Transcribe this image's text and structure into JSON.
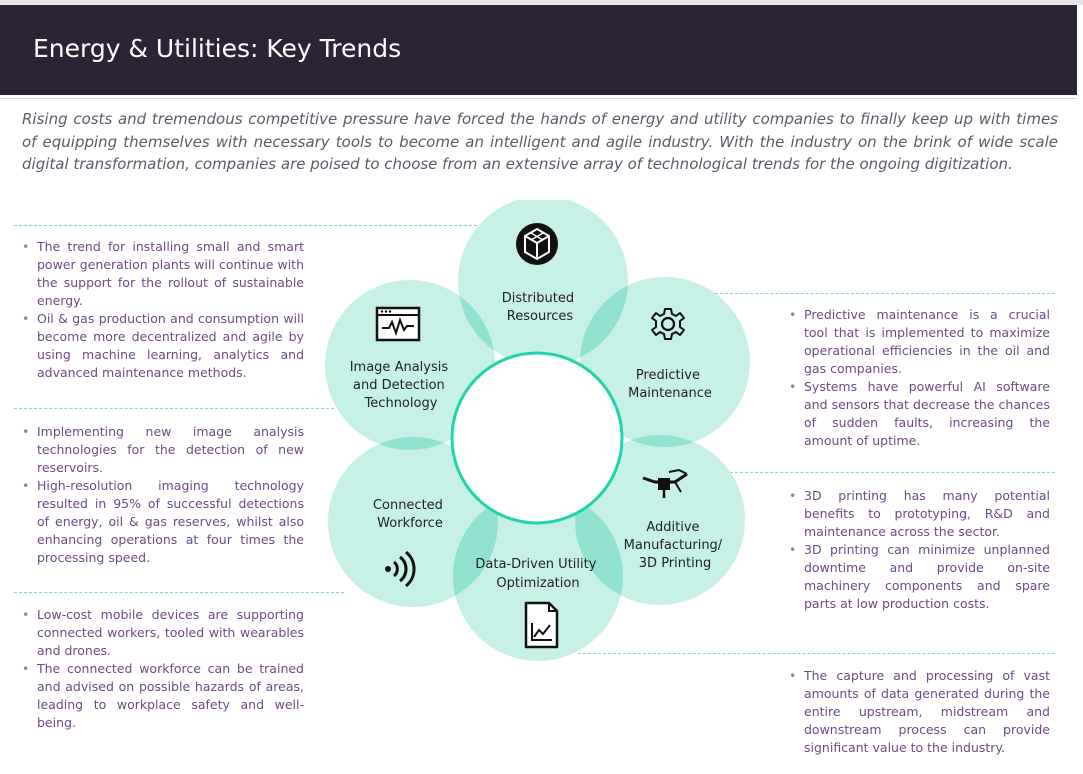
{
  "title": "Energy & Utilities: Key Trends",
  "intro": "Rising costs and tremendous competitive pressure have forced the hands of energy and utility companies to finally keep up with times of equipping themselves with necessary tools to become an intelligent and agile industry. With the industry on the brink of wide scale digital transformation, companies are poised to choose from an extensive array of technological trends for the ongoing digitization.",
  "colors": {
    "header_bg": "#2b2437",
    "petal_fill": "#c7f0e6",
    "petal_overlap": "#8fe2cf",
    "center_ring": "#1fd3ad",
    "bullet_text": "#6f4a86",
    "dashed_rule": "#7fd9c5"
  },
  "petals": [
    {
      "label_lines": [
        "Distributed",
        "Resources"
      ],
      "icon": "distributed-resources-icon"
    },
    {
      "label_lines": [
        "Predictive",
        "Maintenance"
      ],
      "icon": "gear-icon"
    },
    {
      "label_lines": [
        "Additive",
        "Manufacturing/",
        "3D Printing"
      ],
      "icon": "3d-printer-icon"
    },
    {
      "label_lines": [
        "Data-Driven Utility",
        "Optimization"
      ],
      "icon": "chart-document-icon"
    },
    {
      "label_lines": [
        "Connected",
        "Workforce"
      ],
      "icon": "wireless-signal-icon"
    },
    {
      "label_lines": [
        "Image Analysis",
        "and Detection",
        "Technology"
      ],
      "icon": "monitor-waveform-icon"
    }
  ],
  "left_sections": [
    {
      "bullets": [
        "The trend for installing small and smart power generation plants will continue with the support for the rollout of sustainable energy.",
        "Oil & gas production and consumption will become more decentralized and agile by using machine learning, analytics and advanced maintenance methods."
      ]
    },
    {
      "bullets": [
        "Implementing new image analysis technologies for the detection of new reservoirs.",
        "High-resolution imaging technology resulted in 95% of successful detections of energy, oil & gas reserves, whilst also enhancing operations at four times the processing speed."
      ]
    },
    {
      "bullets": [
        "Low-cost mobile devices are supporting connected workers, tooled with wearables and drones.",
        "The connected workforce can be trained and advised on possible hazards of areas, leading to workplace safety and well-being."
      ]
    }
  ],
  "right_sections": [
    {
      "bullets": [
        "Predictive maintenance is a crucial tool that is implemented to maximize operational efficiencies in the oil and gas companies.",
        "Systems have powerful AI software and sensors that decrease the chances of sudden faults, increasing the amount of uptime."
      ]
    },
    {
      "bullets": [
        "3D printing has many potential benefits to prototyping, R&D and maintenance across the sector.",
        "3D printing can minimize unplanned downtime and provide on-site machinery components and spare parts at low production costs."
      ]
    },
    {
      "bullets": [
        "The capture and processing of vast amounts of data generated during the entire upstream, midstream and downstream process can provide significant value to the industry."
      ]
    }
  ]
}
